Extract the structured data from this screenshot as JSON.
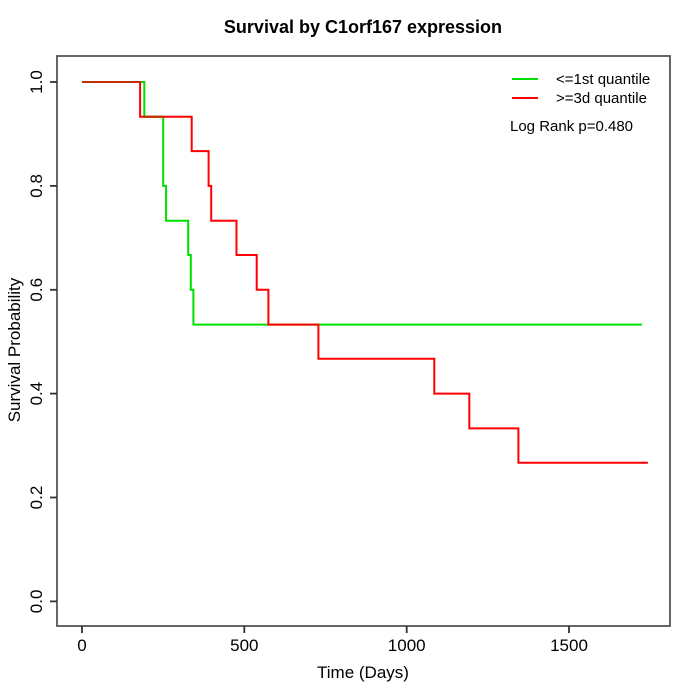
{
  "chart_data": {
    "type": "line",
    "subtype": "kaplan-meier-step",
    "title": "Survival by C1orf167 expression",
    "xlabel": "Time (Days)",
    "ylabel": "Survival Probability",
    "xlim": [
      0,
      1810
    ],
    "ylim": [
      0.0,
      1.0
    ],
    "xticks": [
      0,
      500,
      1000,
      1500
    ],
    "yticks": [
      "0.0",
      "0.2",
      "0.4",
      "0.6",
      "0.8",
      "1.0"
    ],
    "grid": false,
    "legend": {
      "position": "top-right",
      "items": [
        {
          "label": "<=1st quantile",
          "color": "#00E000"
        },
        {
          "label": ">=3d quantile",
          "color": "#FF0000"
        }
      ]
    },
    "annotation": "Log Rank p=0.480",
    "series": [
      {
        "name": "<=1st quantile",
        "color": "#00E000",
        "end_time": 1725,
        "steps": [
          [
            0,
            1.0
          ],
          [
            192,
            0.933
          ],
          [
            250,
            0.8
          ],
          [
            259,
            0.733
          ],
          [
            327,
            0.667
          ],
          [
            335,
            0.6
          ],
          [
            343,
            0.533
          ]
        ]
      },
      {
        "name": ">=3d quantile",
        "color": "#FF0000",
        "end_time": 1743,
        "steps": [
          [
            0,
            1.0
          ],
          [
            179,
            0.933
          ],
          [
            338,
            0.867
          ],
          [
            390,
            0.8
          ],
          [
            398,
            0.733
          ],
          [
            476,
            0.667
          ],
          [
            538,
            0.6
          ],
          [
            574,
            0.533
          ],
          [
            728,
            0.467
          ],
          [
            1085,
            0.4
          ],
          [
            1193,
            0.333
          ],
          [
            1344,
            0.267
          ]
        ]
      }
    ],
    "overlap_segments": [
      {
        "value": 1.0,
        "t0": 0,
        "t1": 179
      },
      {
        "value": 0.933,
        "t0": 192,
        "t1": 250
      }
    ],
    "overlap_color": "#C33000"
  }
}
